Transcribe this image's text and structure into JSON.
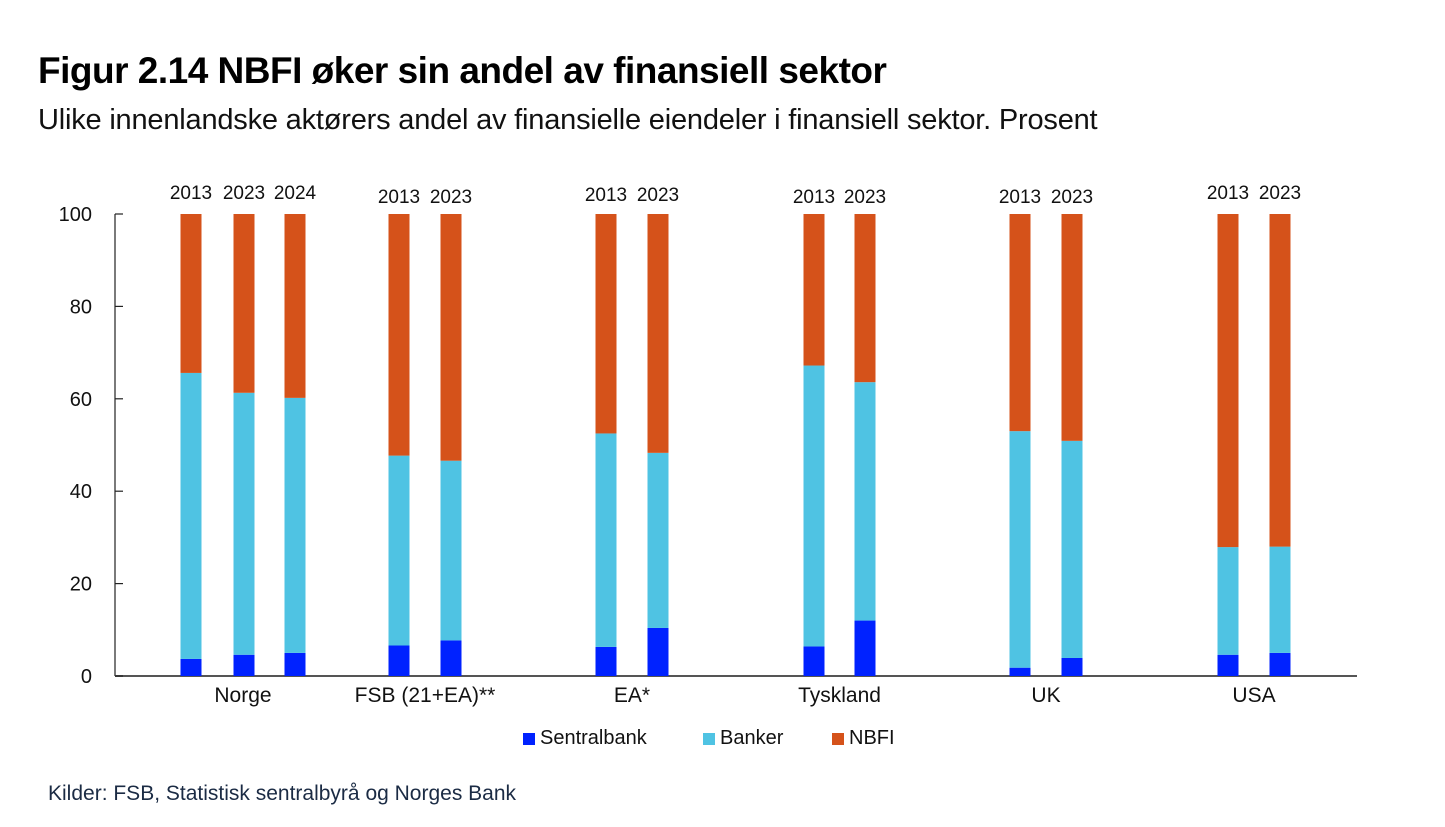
{
  "header": {
    "title": "Figur 2.14 NBFI øker sin andel av finansiell sektor",
    "subtitle": "Ulike innenlandske aktørers andel av finansielle eiendeler i finansiell sektor. Prosent"
  },
  "source": "Kilder: FSB, Statistisk sentralbyrå og Norges Bank",
  "colors": {
    "Sentralbank": "#0022ff",
    "Banker": "#4fc3e3",
    "NBFI": "#d5521a"
  },
  "legend": [
    {
      "label": "Sentralbank",
      "color_key": "Sentralbank"
    },
    {
      "label": "Banker",
      "color_key": "Banker"
    },
    {
      "label": "NBFI",
      "color_key": "NBFI"
    }
  ],
  "chart_data": {
    "type": "bar",
    "stacked": true,
    "title": "Figur 2.14 NBFI øker sin andel av finansiell sektor",
    "subtitle": "Ulike innenlandske aktørers andel av finansielle eiendeler i finansiell sektor. Prosent",
    "xlabel": "",
    "ylabel": "",
    "ylim": [
      0,
      100
    ],
    "yticks": [
      0,
      20,
      40,
      60,
      80,
      100
    ],
    "grid": false,
    "legend_position": "bottom",
    "groups": [
      {
        "category": "Norge",
        "bars": [
          {
            "year": "2013",
            "Sentralbank": 3.7,
            "Banker": 61.9,
            "NBFI": 34.4
          },
          {
            "year": "2023",
            "Sentralbank": 4.6,
            "Banker": 56.7,
            "NBFI": 38.7
          },
          {
            "year": "2024",
            "Sentralbank": 5.0,
            "Banker": 55.2,
            "NBFI": 39.8
          }
        ]
      },
      {
        "category": "FSB (21+EA)**",
        "bars": [
          {
            "year": "2013",
            "Sentralbank": 6.6,
            "Banker": 41.1,
            "NBFI": 52.3
          },
          {
            "year": "2023",
            "Sentralbank": 7.7,
            "Banker": 38.9,
            "NBFI": 53.4
          }
        ]
      },
      {
        "category": "EA*",
        "bars": [
          {
            "year": "2013",
            "Sentralbank": 6.3,
            "Banker": 46.2,
            "NBFI": 47.5
          },
          {
            "year": "2023",
            "Sentralbank": 10.4,
            "Banker": 37.9,
            "NBFI": 51.7
          }
        ]
      },
      {
        "category": "Tyskland",
        "bars": [
          {
            "year": "2013",
            "Sentralbank": 6.4,
            "Banker": 60.8,
            "NBFI": 32.8
          },
          {
            "year": "2023",
            "Sentralbank": 12.0,
            "Banker": 51.6,
            "NBFI": 36.4
          }
        ]
      },
      {
        "category": "UK",
        "bars": [
          {
            "year": "2013",
            "Sentralbank": 1.8,
            "Banker": 51.2,
            "NBFI": 47.0
          },
          {
            "year": "2023",
            "Sentralbank": 3.9,
            "Banker": 47.0,
            "NBFI": 49.1
          }
        ]
      },
      {
        "category": "USA",
        "bars": [
          {
            "year": "2013",
            "Sentralbank": 4.6,
            "Banker": 23.3,
            "NBFI": 72.1
          },
          {
            "year": "2023",
            "Sentralbank": 5.0,
            "Banker": 23.0,
            "NBFI": 72.0
          }
        ]
      }
    ],
    "series": [
      "Sentralbank",
      "Banker",
      "NBFI"
    ]
  }
}
